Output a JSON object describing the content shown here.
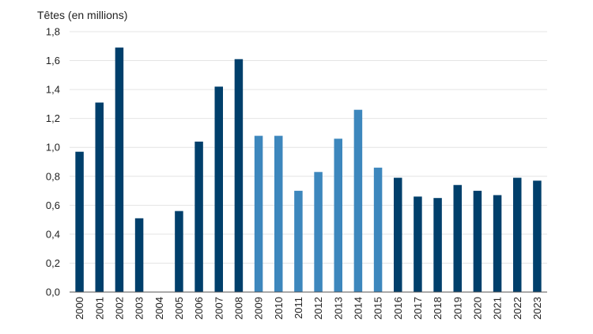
{
  "chart_data": {
    "type": "bar",
    "ylabel": "Têtes (en millions)",
    "xlabel": "",
    "ylim": [
      0,
      1.8
    ],
    "y_ticks": [
      "0,0",
      "0,2",
      "0,4",
      "0,6",
      "0,8",
      "1,0",
      "1,2",
      "1,4",
      "1,6",
      "1,8"
    ],
    "grid": true,
    "categories": [
      "2000",
      "2001",
      "2002",
      "2003",
      "2004",
      "2005",
      "2006",
      "2007",
      "2008",
      "2009",
      "2010",
      "2011",
      "2012",
      "2013",
      "2014",
      "2015",
      "2016",
      "2017",
      "2018",
      "2019",
      "2020",
      "2021",
      "2022",
      "2023"
    ],
    "values": [
      0.97,
      1.31,
      1.69,
      0.51,
      0.0,
      0.56,
      1.04,
      1.42,
      1.61,
      1.08,
      1.08,
      0.7,
      0.83,
      1.06,
      1.26,
      0.86,
      0.79,
      0.66,
      0.65,
      0.74,
      0.7,
      0.67,
      0.79,
      0.77
    ],
    "bar_colors": [
      "#003f6b",
      "#003f6b",
      "#003f6b",
      "#003f6b",
      "#003f6b",
      "#003f6b",
      "#003f6b",
      "#003f6b",
      "#003f6b",
      "#3d87bd",
      "#3d87bd",
      "#3d87bd",
      "#3d87bd",
      "#3d87bd",
      "#3d87bd",
      "#3d87bd",
      "#003f6b",
      "#003f6b",
      "#003f6b",
      "#003f6b",
      "#003f6b",
      "#003f6b",
      "#003f6b",
      "#003f6b"
    ]
  }
}
